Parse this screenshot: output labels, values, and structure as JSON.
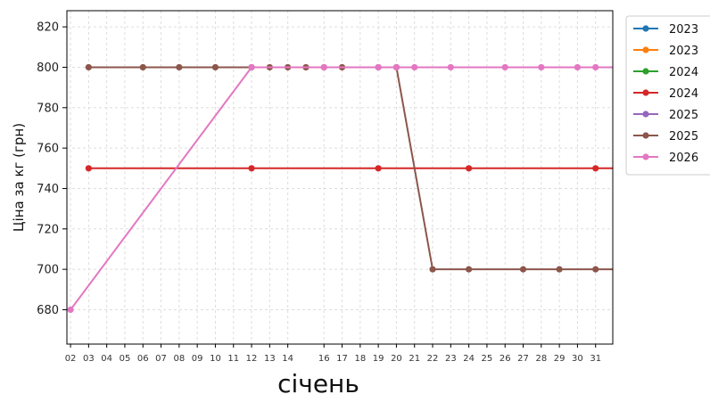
{
  "chart_data": {
    "type": "line",
    "title": "",
    "xlabel": "січень",
    "ylabel": "Ціна за кг (грн)",
    "x_ticks": [
      "02",
      "03",
      "04",
      "05",
      "06",
      "07",
      "08",
      "09",
      "10",
      "11",
      "12",
      "13",
      "14",
      "16",
      "17",
      "18",
      "19",
      "20",
      "21",
      "22",
      "23",
      "24",
      "25",
      "26",
      "27",
      "28",
      "29",
      "30",
      "31"
    ],
    "xlim": [
      1.8,
      31.95
    ],
    "ylim": [
      663,
      828
    ],
    "y_ticks": [
      680,
      700,
      720,
      740,
      760,
      780,
      800,
      820
    ],
    "grid": true,
    "legend_position": "outside-right",
    "series": [
      {
        "name": "2023",
        "color": "#1f77b4",
        "points": []
      },
      {
        "name": "2023",
        "color": "#ff7f0e",
        "points": []
      },
      {
        "name": "2024",
        "color": "#2ca02c",
        "points": []
      },
      {
        "name": "2024",
        "color": "#d62728",
        "points": [
          [
            3,
            750
          ],
          [
            12,
            750
          ],
          [
            19,
            750
          ],
          [
            24,
            750
          ],
          [
            31,
            750
          ],
          [
            31.95,
            750
          ]
        ]
      },
      {
        "name": "2025",
        "color": "#9467bd",
        "points": []
      },
      {
        "name": "2025",
        "color": "#8c564b",
        "points": [
          [
            3,
            800
          ],
          [
            6,
            800
          ],
          [
            8,
            800
          ],
          [
            10,
            800
          ],
          [
            12,
            800
          ],
          [
            13,
            800
          ],
          [
            14,
            800
          ],
          [
            15,
            800
          ],
          [
            16,
            800
          ],
          [
            17,
            800
          ],
          [
            19,
            800
          ],
          [
            20,
            800
          ],
          [
            22,
            700
          ],
          [
            24,
            700
          ],
          [
            27,
            700
          ],
          [
            29,
            700
          ],
          [
            31,
            700
          ],
          [
            31.95,
            700
          ]
        ]
      },
      {
        "name": "2026",
        "color": "#e377c2",
        "points": [
          [
            2,
            680
          ],
          [
            12,
            800
          ],
          [
            16,
            800
          ],
          [
            19,
            800
          ],
          [
            20,
            800
          ],
          [
            21,
            800
          ],
          [
            23,
            800
          ],
          [
            26,
            800
          ],
          [
            28,
            800
          ],
          [
            30,
            800
          ],
          [
            31,
            800
          ],
          [
            31.95,
            800
          ]
        ]
      }
    ]
  }
}
